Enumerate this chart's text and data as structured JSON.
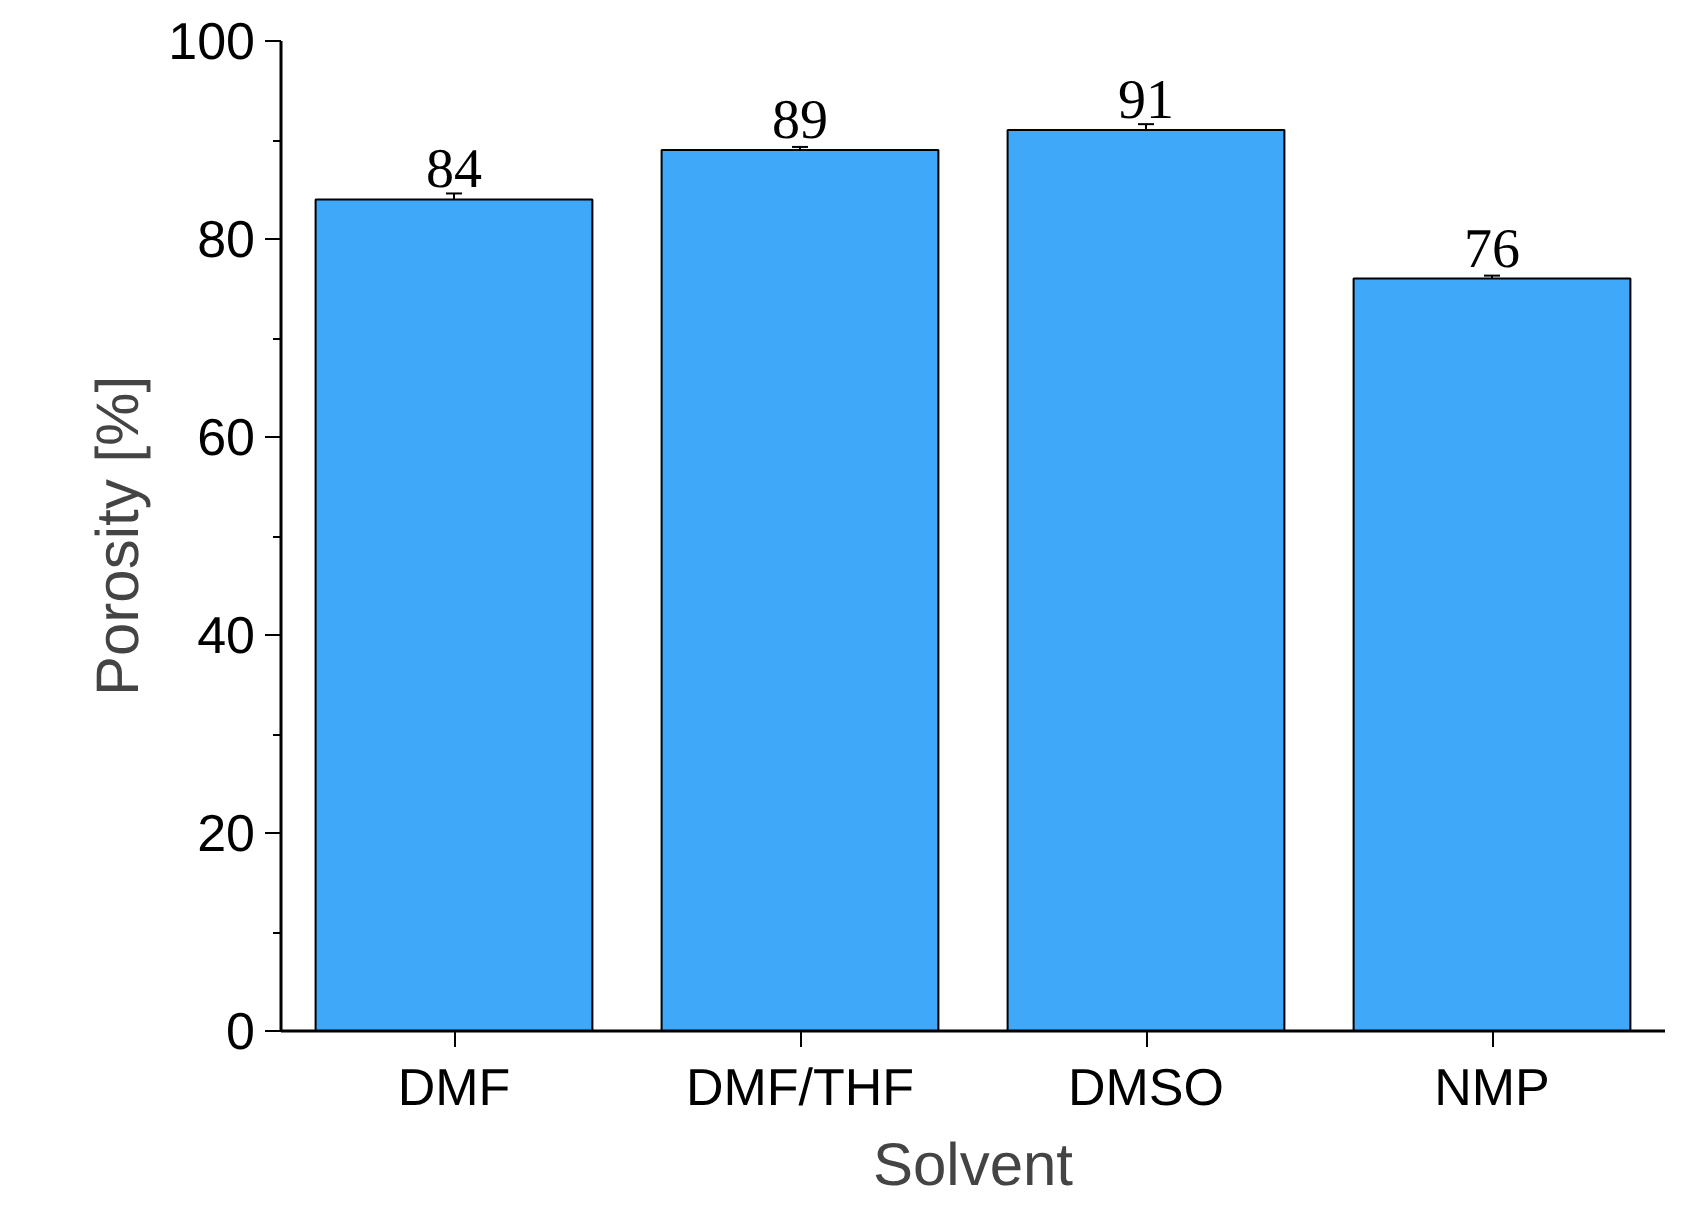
{
  "chart_data": {
    "type": "bar",
    "xlabel": "Solvent",
    "ylabel": "Porosity [%]",
    "categories": [
      "DMF",
      "DMF/THF",
      "DMSO",
      "NMP"
    ],
    "values": [
      84,
      89,
      91,
      76
    ],
    "errors": [
      0.6,
      0.3,
      0.6,
      0.3
    ],
    "color": "#40a8f8",
    "ylim": [
      0,
      100
    ],
    "yticks": [
      0,
      20,
      40,
      60,
      80,
      100
    ],
    "data_labels": true,
    "grid": false
  }
}
